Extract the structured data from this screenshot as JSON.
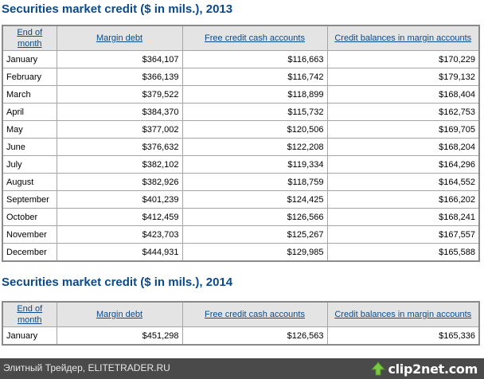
{
  "sections": [
    {
      "title": "Securities market credit ($ in mils.), 2013",
      "columns": [
        "End of month",
        "Margin debt",
        "Free credit cash accounts",
        "Credit balances in margin accounts"
      ],
      "rows": [
        {
          "month": "January",
          "margin_debt": "$364,107",
          "free_credit": "$116,663",
          "credit_balances": "$170,229"
        },
        {
          "month": "February",
          "margin_debt": "$366,139",
          "free_credit": "$116,742",
          "credit_balances": "$179,132"
        },
        {
          "month": "March",
          "margin_debt": "$379,522",
          "free_credit": "$118,899",
          "credit_balances": "$168,404"
        },
        {
          "month": "April",
          "margin_debt": "$384,370",
          "free_credit": "$115,732",
          "credit_balances": "$162,753"
        },
        {
          "month": "May",
          "margin_debt": "$377,002",
          "free_credit": "$120,506",
          "credit_balances": "$169,705"
        },
        {
          "month": "June",
          "margin_debt": "$376,632",
          "free_credit": "$122,208",
          "credit_balances": "$168,204"
        },
        {
          "month": "July",
          "margin_debt": "$382,102",
          "free_credit": "$119,334",
          "credit_balances": "$164,296"
        },
        {
          "month": "August",
          "margin_debt": "$382,926",
          "free_credit": "$118,759",
          "credit_balances": "$164,552"
        },
        {
          "month": "September",
          "margin_debt": "$401,239",
          "free_credit": "$124,425",
          "credit_balances": "$166,202"
        },
        {
          "month": "October",
          "margin_debt": "$412,459",
          "free_credit": "$126,566",
          "credit_balances": "$168,241"
        },
        {
          "month": "November",
          "margin_debt": "$423,703",
          "free_credit": "$125,267",
          "credit_balances": "$167,557"
        },
        {
          "month": "December",
          "margin_debt": "$444,931",
          "free_credit": "$129,985",
          "credit_balances": "$165,588"
        }
      ]
    },
    {
      "title": "Securities market credit ($ in mils.), 2014",
      "columns": [
        "End of month",
        "Margin debt",
        "Free credit cash accounts",
        "Credit balances in margin accounts"
      ],
      "rows": [
        {
          "month": "January",
          "margin_debt": "$451,298",
          "free_credit": "$126,563",
          "credit_balances": "$165,336"
        }
      ]
    }
  ],
  "footer": {
    "source_text": "Элитный Трейдер, ELITETRADER.RU",
    "logo_text": "clip2net.com",
    "logo_icon": "green-up-arrow-icon"
  },
  "colors": {
    "title": "#0a4a8a",
    "header_bg": "#e4e4e4",
    "footer_bg": "#4a4a4a"
  }
}
